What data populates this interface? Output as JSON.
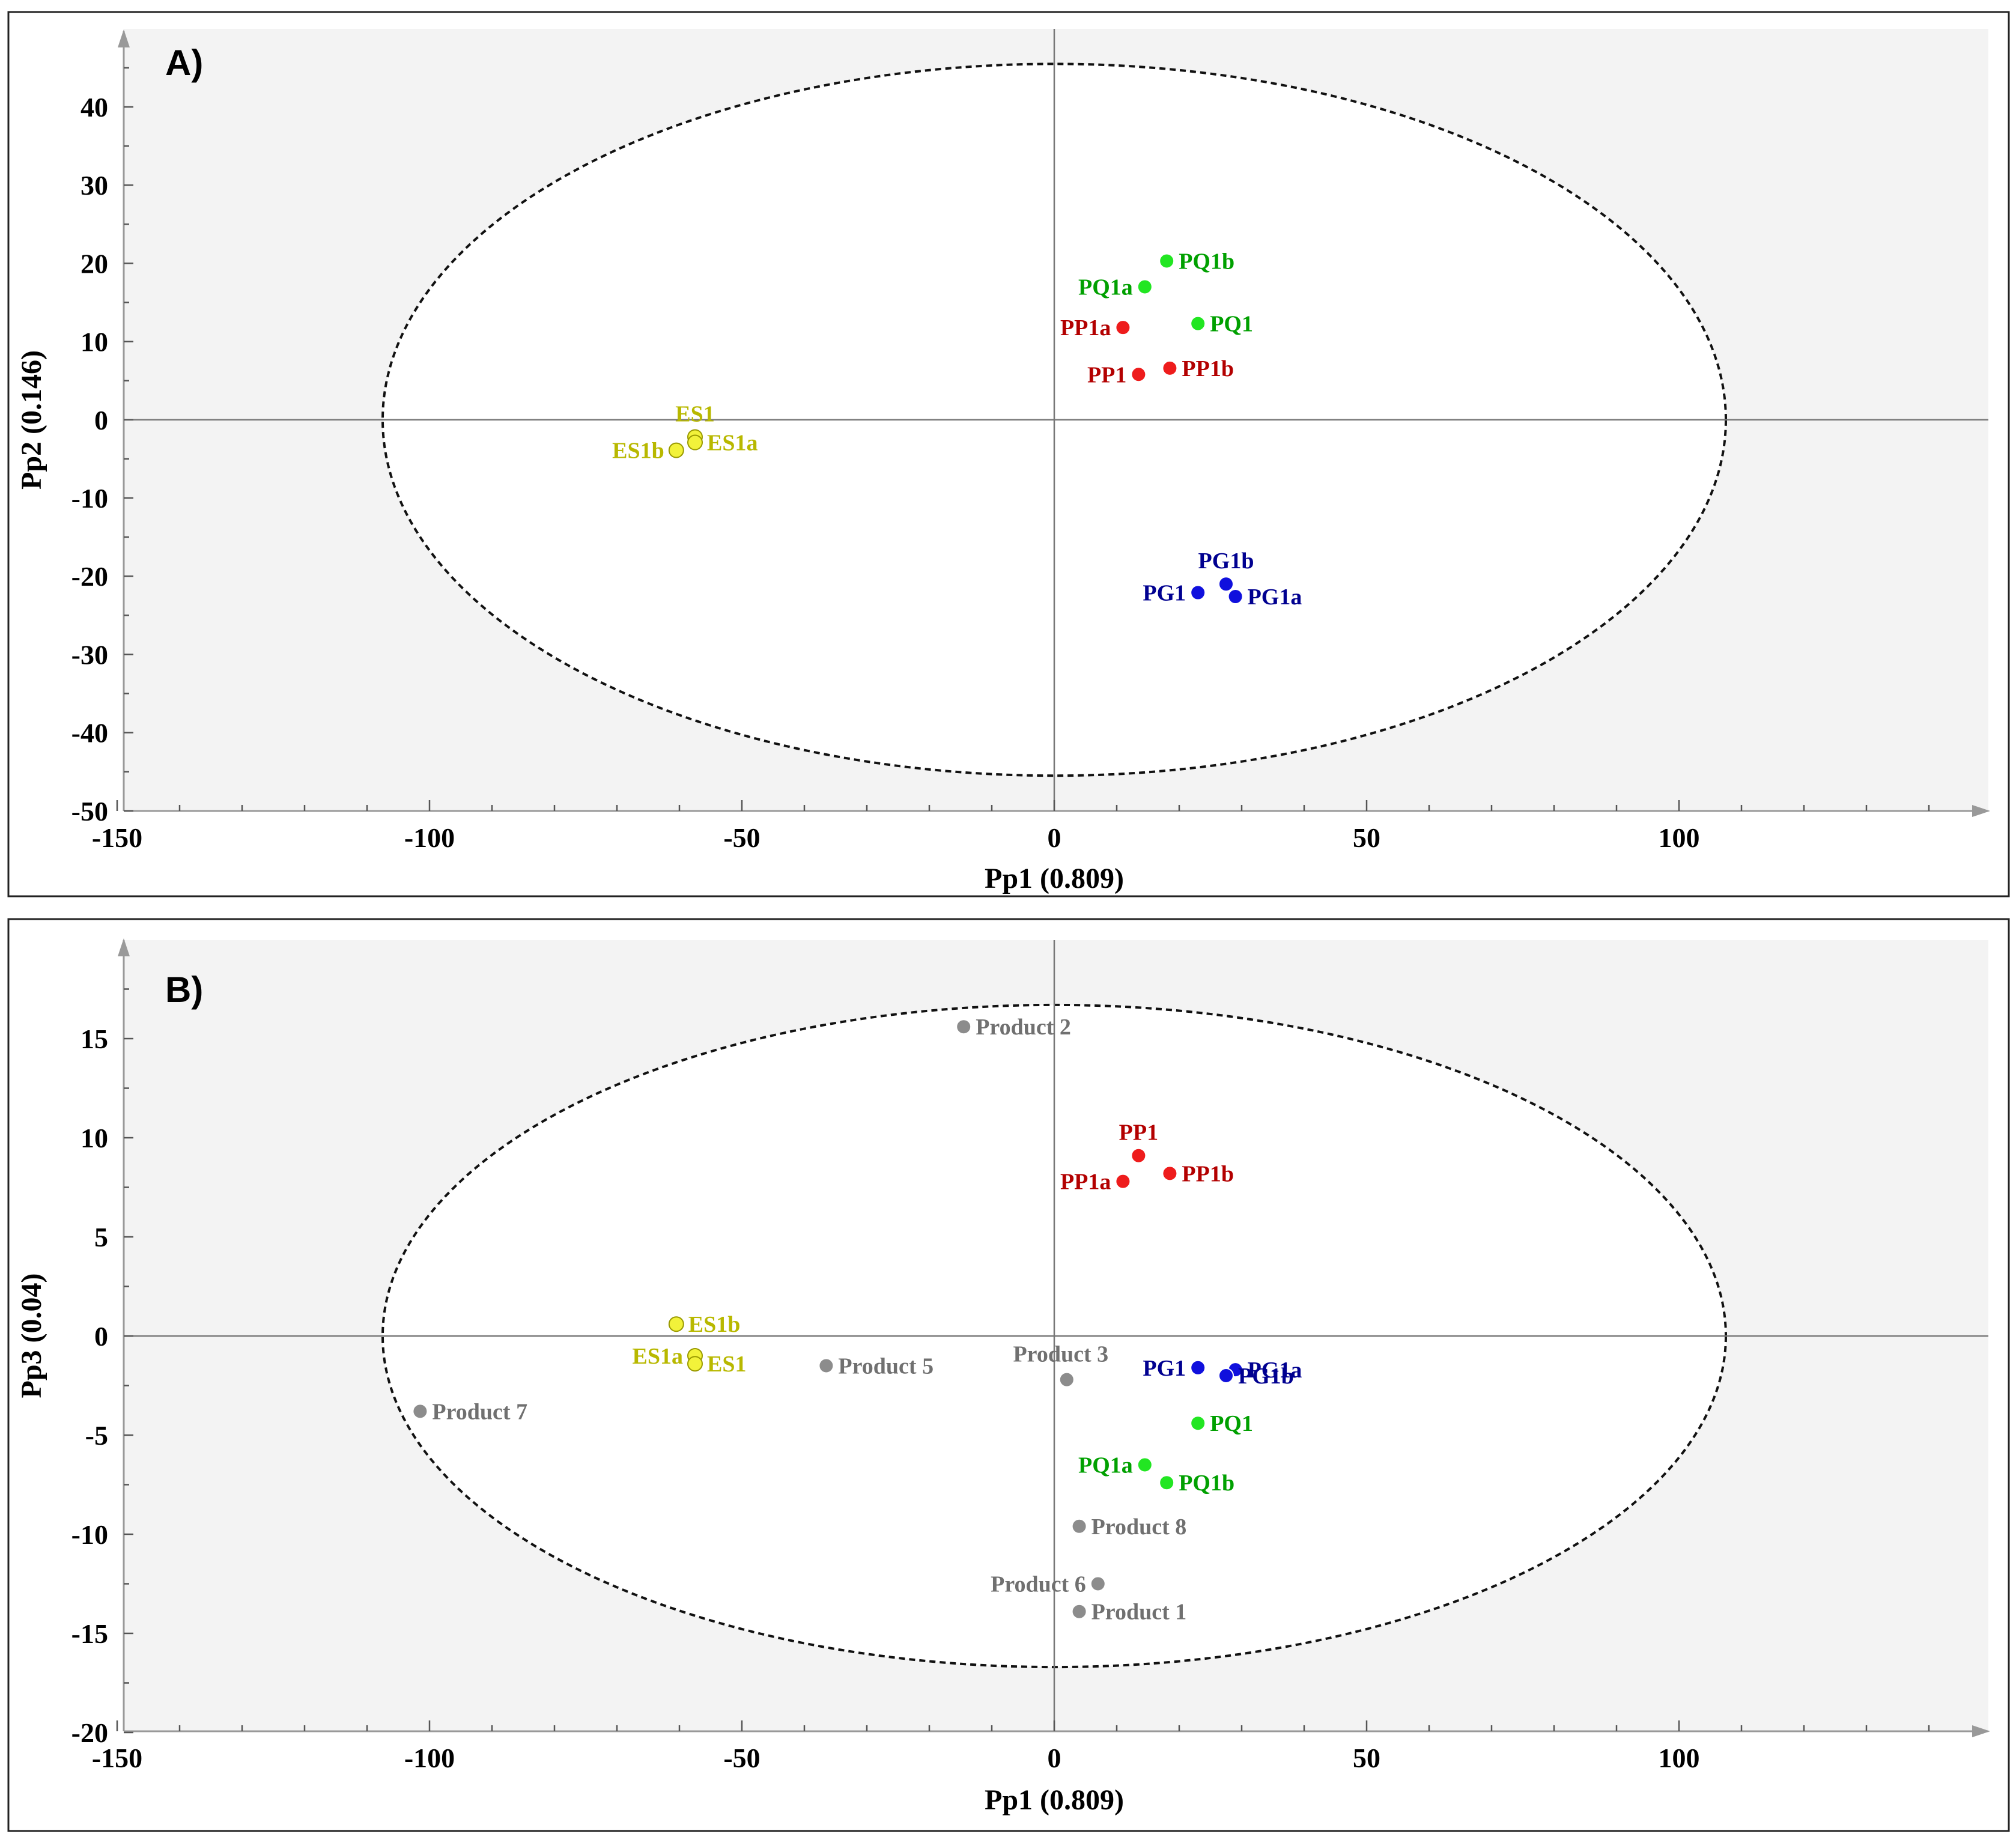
{
  "colors": {
    "ES": "#f2f23a",
    "ES_label": "#b8b800",
    "PP": "#ee1c1c",
    "PP_label": "#b30000",
    "PQ": "#22e622",
    "PQ_label": "#00a000",
    "PG": "#1010dd",
    "PG_label": "#000090",
    "Product": "#8c8c8c",
    "Product_label": "#707070",
    "plot_bg": "#f3f3f3",
    "ellipse_fill": "#ffffff"
  },
  "chart_data": [
    {
      "type": "scatter",
      "panel": "A)",
      "xlabel": "Pp1 (0.809)",
      "ylabel": "Pp2 (0.146)",
      "xlim": [
        -150,
        150
      ],
      "ylim": [
        -50,
        50
      ],
      "xticks": [
        -150,
        -100,
        -50,
        0,
        50,
        100
      ],
      "yticks": [
        40,
        30,
        20,
        10,
        0,
        -10,
        -20,
        -30,
        -40,
        -50
      ],
      "ellipse": {
        "rx": 107.5,
        "ry": 45.5
      },
      "points": [
        {
          "label": "PQ1b",
          "x": 18,
          "y": 20.3,
          "group": "PQ",
          "anchor": "right"
        },
        {
          "label": "PQ1a",
          "x": 14.5,
          "y": 17,
          "group": "PQ",
          "anchor": "left"
        },
        {
          "label": "PQ1",
          "x": 23,
          "y": 12.3,
          "group": "PQ",
          "anchor": "right"
        },
        {
          "label": "PP1a",
          "x": 11,
          "y": 11.8,
          "group": "PP",
          "anchor": "left"
        },
        {
          "label": "PP1b",
          "x": 18.5,
          "y": 6.6,
          "group": "PP",
          "anchor": "right"
        },
        {
          "label": "PP1",
          "x": 13.5,
          "y": 5.8,
          "group": "PP",
          "anchor": "left"
        },
        {
          "label": "ES1",
          "x": -57.5,
          "y": -2.2,
          "group": "ES",
          "anchor": "above"
        },
        {
          "label": "ES1a",
          "x": -57.5,
          "y": -2.9,
          "group": "ES",
          "anchor": "right"
        },
        {
          "label": "ES1b",
          "x": -60.5,
          "y": -3.9,
          "group": "ES",
          "anchor": "left"
        },
        {
          "label": "PG1b",
          "x": 27.5,
          "y": -21,
          "group": "PG",
          "anchor": "above"
        },
        {
          "label": "PG1",
          "x": 23,
          "y": -22.1,
          "group": "PG",
          "anchor": "left"
        },
        {
          "label": "PG1a",
          "x": 29,
          "y": -22.6,
          "group": "PG",
          "anchor": "right"
        }
      ]
    },
    {
      "type": "scatter",
      "panel": "B)",
      "xlabel": "Pp1 (0.809)",
      "ylabel": "Pp3 (0.04)",
      "xlim": [
        -150,
        150
      ],
      "ylim": [
        -20,
        20
      ],
      "xticks": [
        -150,
        -100,
        -50,
        0,
        50,
        100
      ],
      "yticks": [
        15,
        10,
        5,
        0,
        -5,
        -10,
        -15,
        -20
      ],
      "ellipse": {
        "rx": 107.5,
        "ry": 16.7
      },
      "points": [
        {
          "label": "Product 2",
          "x": -14.5,
          "y": 15.6,
          "group": "Product",
          "anchor": "right"
        },
        {
          "label": "PP1",
          "x": 13.5,
          "y": 9.1,
          "group": "PP",
          "anchor": "above"
        },
        {
          "label": "PP1b",
          "x": 18.5,
          "y": 8.2,
          "group": "PP",
          "anchor": "right"
        },
        {
          "label": "PP1a",
          "x": 11,
          "y": 7.8,
          "group": "PP",
          "anchor": "left"
        },
        {
          "label": "ES1b",
          "x": -60.5,
          "y": 0.6,
          "group": "ES",
          "anchor": "right"
        },
        {
          "label": "ES1a",
          "x": -57.5,
          "y": -1,
          "group": "ES",
          "anchor": "left"
        },
        {
          "label": "ES1",
          "x": -57.5,
          "y": -1.4,
          "group": "ES",
          "anchor": "right"
        },
        {
          "label": "Product 5",
          "x": -36.5,
          "y": -1.5,
          "group": "Product",
          "anchor": "right"
        },
        {
          "label": "Product 3",
          "x": 2,
          "y": -2.2,
          "group": "Product",
          "anchor": "above-left"
        },
        {
          "label": "PG1",
          "x": 23,
          "y": -1.6,
          "group": "PG",
          "anchor": "left"
        },
        {
          "label": "PG1a",
          "x": 29,
          "y": -1.7,
          "group": "PG",
          "anchor": "right"
        },
        {
          "label": "PG1b",
          "x": 27.5,
          "y": -2,
          "group": "PG",
          "anchor": "right"
        },
        {
          "label": "Product 7",
          "x": -101.5,
          "y": -3.8,
          "group": "Product",
          "anchor": "right"
        },
        {
          "label": "PQ1",
          "x": 23,
          "y": -4.4,
          "group": "PQ",
          "anchor": "right"
        },
        {
          "label": "PQ1a",
          "x": 14.5,
          "y": -6.5,
          "group": "PQ",
          "anchor": "left"
        },
        {
          "label": "PQ1b",
          "x": 18,
          "y": -7.4,
          "group": "PQ",
          "anchor": "right"
        },
        {
          "label": "Product 8",
          "x": 4,
          "y": -9.6,
          "group": "Product",
          "anchor": "right"
        },
        {
          "label": "Product 6",
          "x": 7,
          "y": -12.5,
          "group": "Product",
          "anchor": "left"
        },
        {
          "label": "Product 1",
          "x": 4,
          "y": -13.9,
          "group": "Product",
          "anchor": "right"
        }
      ]
    }
  ]
}
